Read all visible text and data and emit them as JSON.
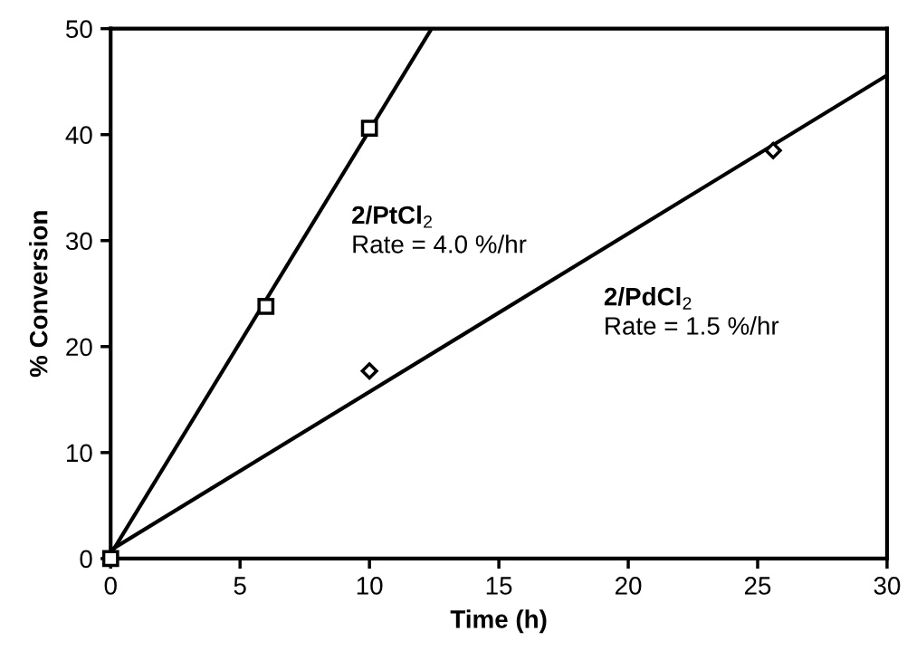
{
  "chart_data": {
    "type": "scatter",
    "xlabel": "Time (h)",
    "ylabel": "% Conversion",
    "xlim": [
      0,
      30
    ],
    "xticks": [
      0,
      5,
      10,
      15,
      20,
      25,
      30
    ],
    "ylim": [
      0,
      50
    ],
    "yticks": [
      0,
      10,
      20,
      30,
      40,
      50
    ],
    "grid": false,
    "legend": false,
    "series": [
      {
        "marker": "square",
        "color": "#000000",
        "x": [
          0,
          6,
          10
        ],
        "values": [
          0,
          23.8,
          40.6
        ]
      },
      {
        "marker": "diamond",
        "color": "#000000",
        "x": [
          10,
          25.6
        ],
        "values": [
          17.7,
          38.5
        ]
      },
      {
        "type": "line",
        "name": "2/PtCl$_{2}$",
        "marker": "none",
        "color": "#000000",
        "x": [
          0,
          12.4
        ],
        "values": [
          0.4,
          50
        ]
      },
      {
        "type": "line",
        "name": "2/PdCl$_{2}$",
        "marker": "none",
        "color": "#000000",
        "x": [
          0,
          30
        ],
        "values": [
          0.8,
          45.6
        ]
      }
    ],
    "annotations": [
      "Rate = 4.0 %/hr",
      "Rate = 1.5 %/hr"
    ]
  }
}
